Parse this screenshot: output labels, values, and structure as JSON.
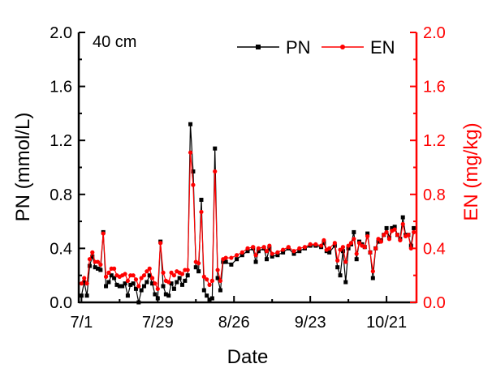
{
  "chart_data": {
    "type": "line",
    "panel_label": "40 cm",
    "xlabel": "Date",
    "ylabel": "PN (mmol/L)",
    "y2label": "EN (mg/kg)",
    "x_unit": "days since 7/1",
    "xlim": [
      -1,
      123
    ],
    "ylim": [
      0,
      2.0
    ],
    "y2lim": [
      0,
      2.0
    ],
    "x_ticks": [
      {
        "day": 0,
        "label": "7/1"
      },
      {
        "day": 28,
        "label": "7/29"
      },
      {
        "day": 56,
        "label": "8/26"
      },
      {
        "day": 84,
        "label": "9/23"
      },
      {
        "day": 112,
        "label": "10/21"
      }
    ],
    "y_ticks": [
      "0.0",
      "0.4",
      "0.8",
      "1.2",
      "1.6",
      "2.0"
    ],
    "y2_ticks": [
      "0.0",
      "0.4",
      "0.8",
      "1.2",
      "1.6",
      "2.0"
    ],
    "legend_position": "top-right",
    "colors": {
      "PN": "#000000",
      "EN": "#ff0000"
    },
    "x": [
      0,
      1,
      2,
      3,
      4,
      5,
      6,
      7,
      8,
      9,
      10,
      11,
      12,
      13,
      14,
      15,
      16,
      17,
      18,
      19,
      20,
      21,
      22,
      23,
      24,
      25,
      26,
      27,
      28,
      29,
      30,
      31,
      32,
      33,
      34,
      35,
      36,
      37,
      38,
      39,
      40,
      41,
      42,
      43,
      44,
      45,
      46,
      47,
      48,
      49,
      50,
      51,
      52,
      53,
      55,
      57,
      59,
      61,
      63,
      64,
      65,
      67,
      68,
      69,
      70,
      72,
      74,
      76,
      78,
      80,
      82,
      84,
      86,
      88,
      89,
      90,
      91,
      93,
      94,
      95,
      96,
      97,
      98,
      99,
      100,
      101,
      102,
      103,
      104,
      105,
      106,
      107,
      108,
      109,
      110,
      111,
      112,
      113,
      114,
      115,
      116,
      117,
      118,
      119,
      120,
      121,
      122
    ],
    "series": [
      {
        "name": "PN",
        "axis": "left",
        "marker": "square",
        "values": [
          0.05,
          0.15,
          0.05,
          0.27,
          0.34,
          0.26,
          0.25,
          0.24,
          0.52,
          0.12,
          0.15,
          0.2,
          0.18,
          0.13,
          0.12,
          0.12,
          0.14,
          0.05,
          0.13,
          0.14,
          0.1,
          0.0,
          0.09,
          0.12,
          0.15,
          0.2,
          0.14,
          0.06,
          0.03,
          0.45,
          0.12,
          0.06,
          0.05,
          0.14,
          0.1,
          0.15,
          0.18,
          0.13,
          0.16,
          0.2,
          1.32,
          0.97,
          0.26,
          0.23,
          0.76,
          0.09,
          0.05,
          0.02,
          0.03,
          1.14,
          0.18,
          0.09,
          0.3,
          0.3,
          0.28,
          0.32,
          0.35,
          0.38,
          0.4,
          0.3,
          0.38,
          0.4,
          0.32,
          0.4,
          0.34,
          0.35,
          0.37,
          0.4,
          0.36,
          0.38,
          0.4,
          0.42,
          0.42,
          0.41,
          0.44,
          0.38,
          0.37,
          0.42,
          0.26,
          0.2,
          0.38,
          0.15,
          0.4,
          0.43,
          0.52,
          0.32,
          0.45,
          0.43,
          0.41,
          0.51,
          0.37,
          0.18,
          0.4,
          0.45,
          0.46,
          0.5,
          0.55,
          0.48,
          0.55,
          0.56,
          0.5,
          0.47,
          0.63,
          0.5,
          0.5,
          0.42,
          0.55
        ]
      },
      {
        "name": "EN",
        "axis": "right",
        "marker": "circle",
        "values": [
          0.14,
          0.18,
          0.14,
          0.32,
          0.37,
          0.3,
          0.3,
          0.28,
          0.51,
          0.19,
          0.22,
          0.25,
          0.25,
          0.2,
          0.19,
          0.2,
          0.21,
          0.16,
          0.2,
          0.2,
          0.17,
          0.12,
          0.18,
          0.2,
          0.23,
          0.25,
          0.18,
          0.14,
          0.1,
          0.44,
          0.22,
          0.16,
          0.15,
          0.22,
          0.2,
          0.23,
          0.22,
          0.21,
          0.24,
          0.24,
          1.11,
          0.87,
          0.3,
          0.29,
          0.67,
          0.19,
          0.17,
          0.13,
          0.16,
          0.97,
          0.24,
          0.16,
          0.32,
          0.33,
          0.33,
          0.35,
          0.37,
          0.4,
          0.41,
          0.35,
          0.4,
          0.41,
          0.38,
          0.42,
          0.36,
          0.37,
          0.39,
          0.41,
          0.38,
          0.4,
          0.41,
          0.43,
          0.43,
          0.42,
          0.46,
          0.39,
          0.4,
          0.44,
          0.31,
          0.39,
          0.41,
          0.3,
          0.42,
          0.44,
          0.47,
          0.36,
          0.44,
          0.42,
          0.41,
          0.49,
          0.37,
          0.23,
          0.4,
          0.47,
          0.45,
          0.5,
          0.52,
          0.47,
          0.53,
          0.54,
          0.5,
          0.46,
          0.58,
          0.49,
          0.5,
          0.4,
          0.52
        ]
      }
    ]
  }
}
